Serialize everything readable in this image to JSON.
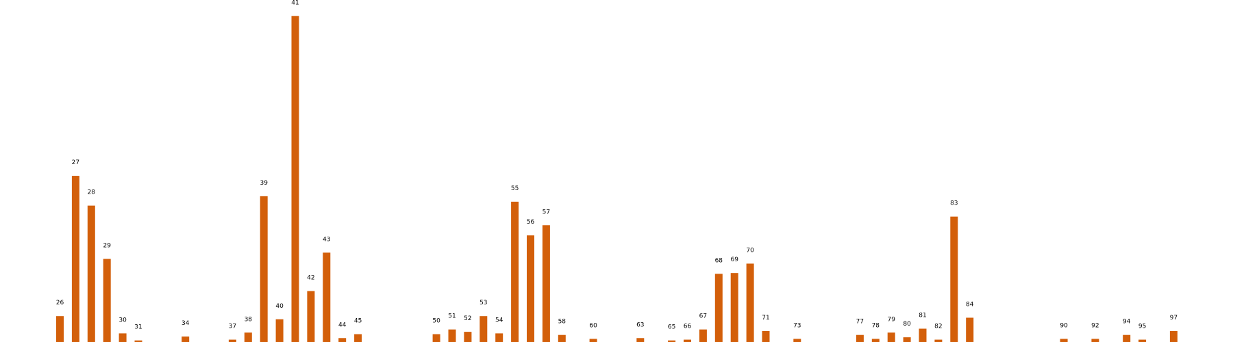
{
  "chart_data": {
    "type": "bar",
    "color": "#d35f0a",
    "ylim": [
      0,
      418
    ],
    "grid": false,
    "categories": [
      "26",
      "27",
      "28",
      "29",
      "30",
      "31",
      "34",
      "37",
      "38",
      "39",
      "40",
      "41",
      "42",
      "43",
      "44",
      "45",
      "50",
      "51",
      "52",
      "53",
      "54",
      "55",
      "56",
      "57",
      "58",
      "60",
      "63",
      "65",
      "66",
      "67",
      "68",
      "69",
      "70",
      "71",
      "73",
      "77",
      "78",
      "79",
      "80",
      "81",
      "82",
      "83",
      "84",
      "90",
      "92",
      "94",
      "95",
      "97"
    ],
    "positions": [
      26,
      27,
      28,
      29,
      30,
      31,
      34,
      37,
      38,
      39,
      40,
      41,
      42,
      43,
      44,
      45,
      50,
      51,
      52,
      53,
      54,
      55,
      56,
      57,
      58,
      60,
      63,
      65,
      66,
      67,
      68,
      69,
      70,
      71,
      73,
      77,
      78,
      79,
      80,
      81,
      82,
      83,
      84,
      90,
      92,
      94,
      95,
      97
    ],
    "values": [
      33,
      212,
      174,
      106,
      11,
      2,
      7,
      3,
      12,
      186,
      29,
      416,
      65,
      114,
      5,
      10,
      10,
      16,
      13,
      33,
      11,
      179,
      136,
      149,
      9,
      4,
      5,
      2,
      3,
      16,
      87,
      88,
      100,
      14,
      4,
      9,
      4,
      12,
      6,
      17,
      3,
      160,
      31,
      4,
      4,
      9,
      3,
      14
    ],
    "x_range": [
      23,
      100
    ]
  }
}
